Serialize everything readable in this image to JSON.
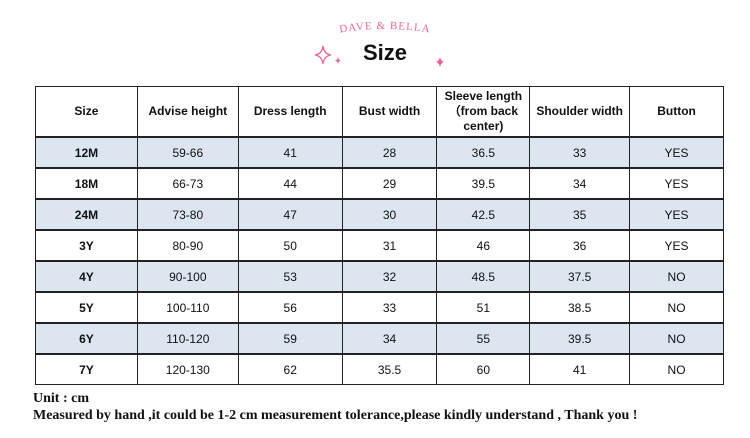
{
  "header": {
    "brand": "DAVE & BELLA",
    "title": "Size"
  },
  "table": {
    "columns": [
      "Size",
      "Advise height",
      "Dress length",
      "Bust width",
      "Sleeve length （from back center)",
      "Shoulder width",
      "Button"
    ],
    "rows": [
      [
        "12M",
        "59-66",
        41,
        28,
        36.5,
        33,
        "YES"
      ],
      [
        "18M",
        "66-73",
        44,
        29,
        39.5,
        34,
        "YES"
      ],
      [
        "24M",
        "73-80",
        47,
        30,
        42.5,
        35,
        "YES"
      ],
      [
        "3Y",
        "80-90",
        50,
        31,
        46,
        36,
        "YES"
      ],
      [
        "4Y",
        "90-100",
        53,
        32,
        48.5,
        37.5,
        "NO"
      ],
      [
        "5Y",
        "100-110",
        56,
        33,
        51,
        38.5,
        "NO"
      ],
      [
        "6Y",
        "110-120",
        59,
        34,
        55,
        39.5,
        "NO"
      ],
      [
        "7Y",
        "120-130",
        62,
        35.5,
        60,
        41,
        "NO"
      ]
    ]
  },
  "footer": {
    "unit": "Unit : cm",
    "note": "Measured by hand ,it could be 1-2 cm measurement tolerance,please kindly understand , Thank you !"
  }
}
